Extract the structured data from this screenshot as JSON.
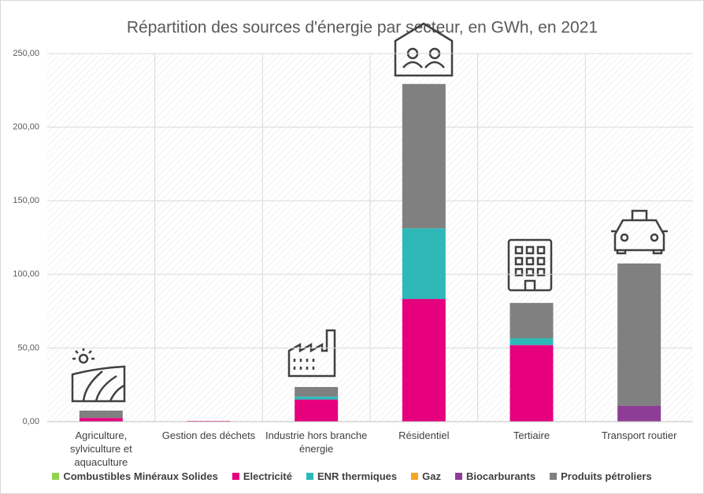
{
  "chart_data": {
    "type": "stacked_bar",
    "title": "Répartition des sources d'énergie par secteur, en GWh, en 2021",
    "categories": [
      "Agriculture, sylviculture et aquaculture",
      "Gestion des déchets",
      "Industrie hors branche énergie",
      "Résidentiel",
      "Tertiaire",
      "Transport routier"
    ],
    "series": [
      {
        "name": "Combustibles Minéraux Solides",
        "color": "#92d050",
        "values": [
          0,
          0,
          0,
          0,
          0,
          0
        ]
      },
      {
        "name": "Electricité",
        "color": "#e6007e",
        "values": [
          2.5,
          0.5,
          15,
          83.3,
          52,
          0
        ]
      },
      {
        "name": "ENR thermiques",
        "color": "#2eb8b8",
        "values": [
          0,
          0,
          2,
          48,
          4.6,
          0
        ]
      },
      {
        "name": "Gaz",
        "color": "#f5a623",
        "values": [
          0,
          0,
          0,
          0,
          0,
          0
        ]
      },
      {
        "name": "Biocarburants",
        "color": "#8e3d96",
        "values": [
          0,
          0,
          0,
          0,
          0,
          10.7
        ]
      },
      {
        "name": "Produits pétroliers",
        "color": "#808080",
        "values": [
          5,
          0,
          6.5,
          98,
          24,
          96.7
        ]
      }
    ],
    "ylim": [
      0,
      250
    ],
    "yticks": [
      {
        "value": 0,
        "label": "0,00"
      },
      {
        "value": 50,
        "label": "50,00"
      },
      {
        "value": 100,
        "label": "100,00"
      },
      {
        "value": 150,
        "label": "150,00"
      },
      {
        "value": 200,
        "label": "200,00"
      },
      {
        "value": 250,
        "label": "250,00"
      }
    ],
    "grid": true,
    "legend": "bottom"
  }
}
